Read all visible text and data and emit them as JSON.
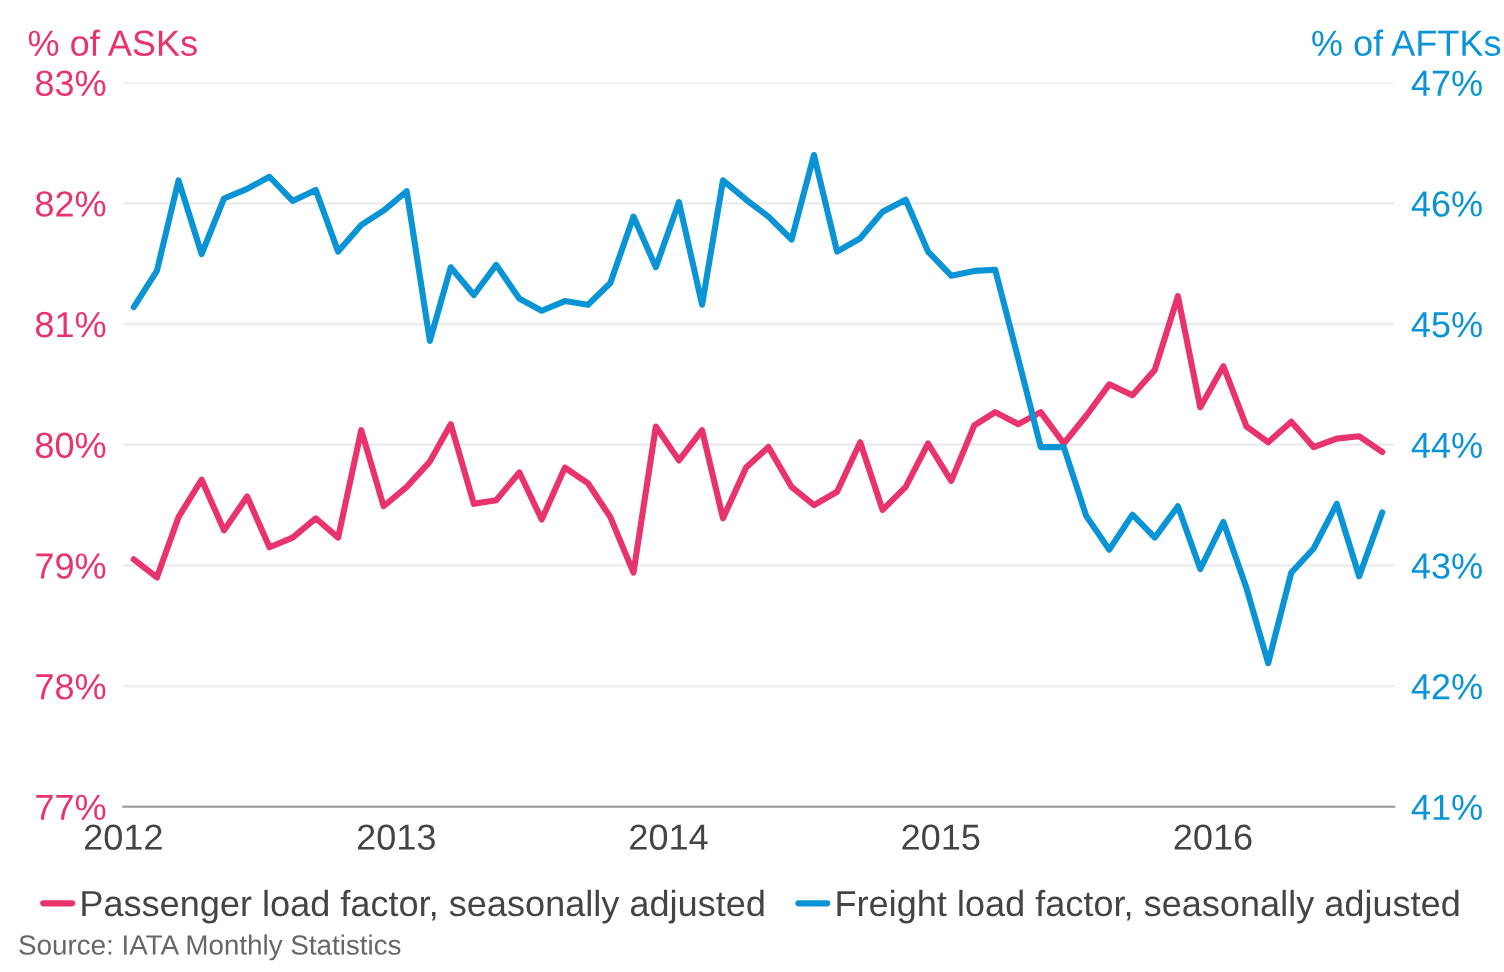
{
  "chart_data": {
    "type": "line",
    "ylabel": "% of ASKs",
    "y2label": "% of AFTKs",
    "x": [
      "2012-01-15",
      "2012-02-15",
      "2012-03-15",
      "2012-04-15",
      "2012-05-15",
      "2012-06-15",
      "2012-07-15",
      "2012-08-15",
      "2012-09-15",
      "2012-10-15",
      "2012-11-15",
      "2012-12-15",
      "2013-01-15",
      "2013-02-15",
      "2013-03-15",
      "2013-04-15",
      "2013-05-15",
      "2013-06-15",
      "2013-07-15",
      "2013-08-15",
      "2013-09-15",
      "2013-10-15",
      "2013-11-15",
      "2013-12-15",
      "2014-01-15",
      "2014-02-15",
      "2014-03-15",
      "2014-04-15",
      "2014-05-15",
      "2014-06-15",
      "2014-07-15",
      "2014-08-15",
      "2014-09-15",
      "2014-10-15",
      "2014-11-15",
      "2014-12-15",
      "2015-01-15",
      "2015-02-15",
      "2015-03-15",
      "2015-04-15",
      "2015-05-15",
      "2015-06-15",
      "2015-07-15",
      "2015-08-15",
      "2015-09-15",
      "2015-10-15",
      "2015-11-15",
      "2015-12-15",
      "2016-01-15",
      "2016-02-15",
      "2016-03-15",
      "2016-04-15",
      "2016-05-15",
      "2016-06-15",
      "2016-07-15",
      "2016-08-15"
    ],
    "series": [
      {
        "name": "Passenger load factor, seasonally adjusted",
        "color": "#e8336d",
        "values": [
          79.05,
          78.9,
          79.4,
          79.71,
          79.29,
          79.57,
          79.15,
          79.23,
          79.39,
          79.23,
          80.12,
          79.49,
          79.65,
          79.86,
          80.17,
          79.51,
          79.54,
          79.77,
          79.38,
          79.81,
          79.68,
          79.4,
          78.94,
          80.15,
          79.87,
          80.12,
          79.39,
          79.81,
          79.98,
          79.65,
          79.5,
          79.61,
          80.02,
          79.46,
          79.65,
          80.01,
          79.7,
          80.16,
          80.27,
          80.17,
          80.27,
          80.01,
          80.24,
          80.5,
          80.41,
          80.62,
          81.23,
          80.31,
          80.65,
          80.15,
          80.02,
          80.19,
          79.98,
          80.05,
          80.07,
          79.94
        ]
      },
      {
        "name": "Freight load factor, seasonally adjusted",
        "color": "#0a94d6",
        "axis": "y2",
        "values": [
          45.14,
          45.44,
          46.19,
          45.58,
          46.04,
          46.12,
          46.22,
          46.02,
          46.11,
          45.6,
          45.82,
          45.94,
          46.1,
          44.86,
          45.47,
          45.24,
          45.49,
          45.21,
          45.11,
          45.19,
          45.16,
          45.34,
          45.89,
          45.47,
          46.01,
          45.16,
          46.19,
          46.03,
          45.89,
          45.7,
          46.4,
          45.6,
          45.71,
          45.93,
          46.03,
          45.6,
          45.4,
          45.44,
          45.45,
          44.71,
          43.98,
          43.98,
          43.41,
          43.13,
          43.42,
          43.23,
          43.49,
          42.97,
          43.36,
          42.81,
          42.19,
          42.94,
          43.14,
          43.51,
          42.91,
          43.44
        ]
      }
    ],
    "xlim": [
      "2012-01-01",
      "2016-08-31"
    ],
    "xticks": [
      "2012",
      "2013",
      "2014",
      "2015",
      "2016"
    ],
    "ylim": [
      77,
      83
    ],
    "yticks": [
      {
        "value": 77,
        "label": "77%"
      },
      {
        "value": 78,
        "label": "78%"
      },
      {
        "value": 79,
        "label": "79%"
      },
      {
        "value": 80,
        "label": "80%"
      },
      {
        "value": 81,
        "label": "81%"
      },
      {
        "value": 82,
        "label": "82%"
      },
      {
        "value": 83,
        "label": "83%"
      }
    ],
    "y2lim": [
      41,
      47
    ],
    "y2ticks": [
      {
        "value": 41,
        "label": "41%"
      },
      {
        "value": 42,
        "label": "42%"
      },
      {
        "value": 43,
        "label": "43%"
      },
      {
        "value": 44,
        "label": "44%"
      },
      {
        "value": 45,
        "label": "45%"
      },
      {
        "value": 46,
        "label": "46%"
      },
      {
        "value": 47,
        "label": "47%"
      }
    ],
    "grid": "y",
    "legend": "bottom",
    "marker": "none",
    "line_style": "solid",
    "annotations": [
      "Source: IATA Monthly Statistics"
    ]
  }
}
